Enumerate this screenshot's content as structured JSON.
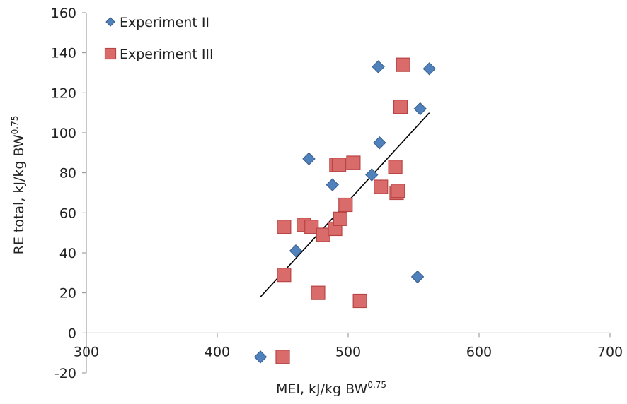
{
  "chart_data": {
    "type": "scatter",
    "title": "",
    "xlabel": "MEI, kJ/kg BW",
    "xlabel_sup": "0.75",
    "ylabel": "RE total, kJ/kg BW",
    "ylabel_sup": "0.75",
    "xlim": [
      300,
      700
    ],
    "ylim": [
      -20,
      160
    ],
    "x_ticks": [
      "300",
      "400",
      "500",
      "600",
      "700"
    ],
    "y_ticks": [
      "-20",
      "0",
      "20",
      "40",
      "60",
      "80",
      "100",
      "120",
      "140",
      "160"
    ],
    "grid": false,
    "legend_position": "top-left",
    "series": [
      {
        "name": "Experiment II",
        "marker": "diamond",
        "color": "#4f81bd",
        "edge_color": "#385d8a",
        "points": [
          [
            433,
            -12
          ],
          [
            460,
            41
          ],
          [
            470,
            87
          ],
          [
            488,
            74
          ],
          [
            518,
            79
          ],
          [
            523,
            133
          ],
          [
            524,
            95
          ],
          [
            553,
            28
          ],
          [
            555,
            112
          ],
          [
            562,
            132
          ]
        ]
      },
      {
        "name": "Experiment III",
        "marker": "square",
        "color": "#d96b6b",
        "edge_color": "#b84444",
        "points": [
          [
            450,
            -12
          ],
          [
            451,
            53
          ],
          [
            451,
            29
          ],
          [
            466,
            54
          ],
          [
            472,
            53
          ],
          [
            477,
            20
          ],
          [
            481,
            49
          ],
          [
            490,
            52
          ],
          [
            491,
            84
          ],
          [
            493,
            84
          ],
          [
            494,
            57
          ],
          [
            498,
            64
          ],
          [
            504,
            85
          ],
          [
            509,
            16
          ],
          [
            525,
            73
          ],
          [
            536,
            83
          ],
          [
            537,
            70
          ],
          [
            538,
            71
          ],
          [
            540,
            113
          ],
          [
            542,
            134
          ]
        ]
      }
    ],
    "trendline": {
      "color": "#000000",
      "points": [
        [
          433,
          18
        ],
        [
          562,
          110
        ]
      ]
    }
  }
}
